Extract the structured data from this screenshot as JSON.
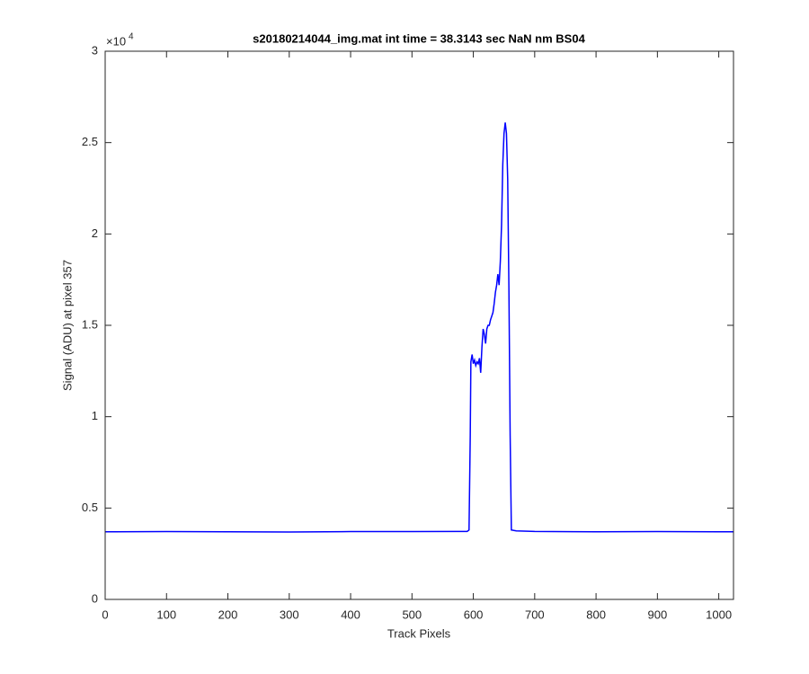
{
  "chart_data": {
    "type": "line",
    "title": "s20180214044_img.mat int time = 38.3143 sec  NaN nm BS04",
    "x_label": "Track Pixels",
    "y_label": "Signal (ADU) at pixel 357",
    "y_exponent_base": "×10",
    "y_exponent": "4",
    "x": [
      0,
      100,
      200,
      300,
      400,
      500,
      590,
      593,
      595,
      596,
      598,
      600,
      602,
      604,
      606,
      608,
      610,
      612,
      614,
      616,
      618,
      620,
      622,
      624,
      626,
      628,
      630,
      632,
      634,
      636,
      638,
      640,
      642,
      644,
      646,
      648,
      650,
      652,
      654,
      656,
      658,
      660,
      662,
      670,
      700,
      800,
      900,
      1000,
      1024
    ],
    "series": [
      {
        "color": "#0000ff",
        "values": [
          0.37,
          0.371,
          0.37,
          0.369,
          0.371,
          0.371,
          0.372,
          0.38,
          0.9,
          1.3,
          1.34,
          1.29,
          1.31,
          1.28,
          1.3,
          1.29,
          1.32,
          1.24,
          1.38,
          1.48,
          1.45,
          1.4,
          1.48,
          1.5,
          1.5,
          1.53,
          1.55,
          1.57,
          1.62,
          1.68,
          1.72,
          1.78,
          1.72,
          1.85,
          2.05,
          2.38,
          2.55,
          2.61,
          2.55,
          2.3,
          1.7,
          0.9,
          0.38,
          0.375,
          0.372,
          0.37,
          0.371,
          0.37,
          0.37
        ]
      }
    ],
    "xlim": [
      0,
      1024
    ],
    "xticks": [
      0,
      100,
      200,
      300,
      400,
      500,
      600,
      700,
      800,
      900,
      1000
    ],
    "ylim": [
      0,
      3
    ],
    "yticks": [
      0,
      0.5,
      1,
      1.5,
      2,
      2.5,
      3
    ],
    "grid": false
  }
}
